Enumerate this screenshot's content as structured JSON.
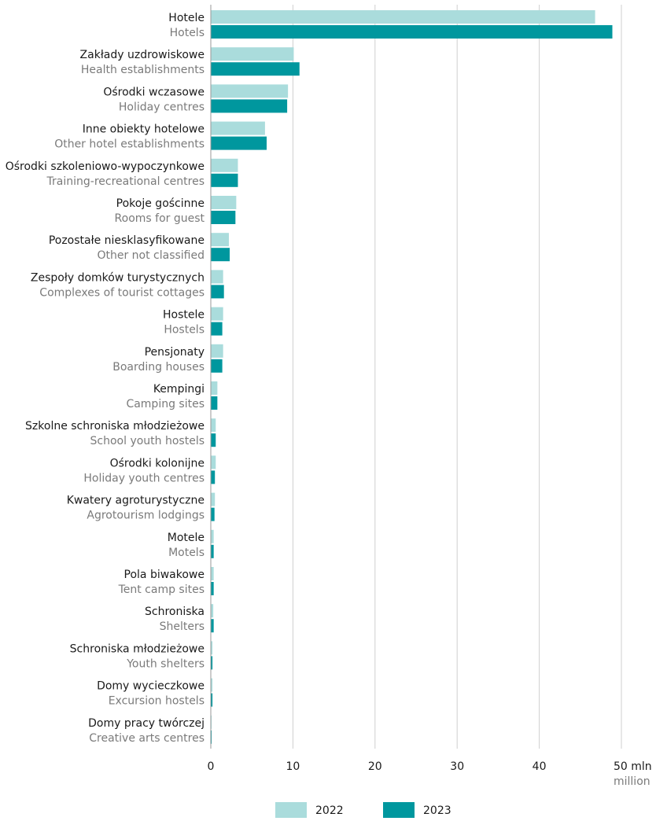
{
  "chart_data": {
    "type": "bar",
    "orientation": "horizontal",
    "categories": [
      {
        "pl": "Hotele",
        "en": "Hotels"
      },
      {
        "pl": "Zakłady uzdrowiskowe",
        "en": "Health establishments"
      },
      {
        "pl": "Ośrodki wczasowe",
        "en": "Holiday centres"
      },
      {
        "pl": "Inne obiekty hotelowe",
        "en": "Other hotel establishments"
      },
      {
        "pl": "Ośrodki szkoleniowo-wypoczynkowe",
        "en": "Training-recreational centres"
      },
      {
        "pl": "Pokoje gościnne",
        "en": "Rooms for guest"
      },
      {
        "pl": "Pozostałe niesklasyfikowane",
        "en": "Other not classified"
      },
      {
        "pl": "Zespoły domków turystycznych",
        "en": "Complexes of tourist cottages"
      },
      {
        "pl": "Hostele",
        "en": "Hostels"
      },
      {
        "pl": "Pensjonaty",
        "en": "Boarding houses"
      },
      {
        "pl": "Kempingi",
        "en": "Camping sites"
      },
      {
        "pl": "Szkolne schroniska młodzieżowe",
        "en": "School youth hostels"
      },
      {
        "pl": "Ośrodki kolonijne",
        "en": "Holiday youth centres"
      },
      {
        "pl": "Kwatery agroturystyczne",
        "en": "Agrotourism lodgings"
      },
      {
        "pl": "Motele",
        "en": "Motels"
      },
      {
        "pl": "Pola biwakowe",
        "en": "Tent camp sites"
      },
      {
        "pl": "Schroniska",
        "en": "Shelters"
      },
      {
        "pl": "Schroniska młodzieżowe",
        "en": "Youth shelters"
      },
      {
        "pl": "Domy wycieczkowe",
        "en": "Excursion hostels"
      },
      {
        "pl": "Domy pracy twórczej",
        "en": "Creative arts centres"
      }
    ],
    "series": [
      {
        "name": "2022",
        "color": "#aadcdc",
        "values": [
          46.8,
          10.1,
          9.4,
          6.6,
          3.3,
          3.1,
          2.2,
          1.5,
          1.5,
          1.5,
          0.8,
          0.6,
          0.6,
          0.5,
          0.35,
          0.35,
          0.3,
          0.2,
          0.2,
          0.1
        ]
      },
      {
        "name": "2023",
        "color": "#00979e",
        "values": [
          48.9,
          10.8,
          9.3,
          6.8,
          3.3,
          3.0,
          2.3,
          1.6,
          1.4,
          1.4,
          0.8,
          0.6,
          0.5,
          0.45,
          0.35,
          0.35,
          0.35,
          0.2,
          0.2,
          0.1
        ]
      }
    ],
    "x_ticks": [
      "0",
      "10",
      "20",
      "30",
      "40",
      "50"
    ],
    "x_unit_pl": "mln",
    "x_unit_en": "million",
    "xlim": [
      0,
      50
    ],
    "grid": true,
    "legend": [
      "2022",
      "2023"
    ],
    "legend_position": "bottom-center"
  }
}
